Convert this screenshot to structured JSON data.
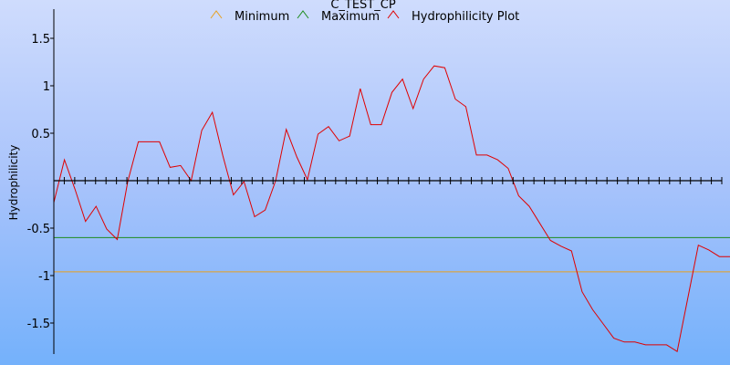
{
  "chart_data": {
    "type": "line",
    "title": "C_TEST_CP",
    "xlabel": "",
    "ylabel": "Hydrophilicity",
    "ylim": [
      -1.8,
      1.8
    ],
    "y_ticks": [
      1.5,
      1,
      0.5,
      -0.5,
      -1,
      -1.5
    ],
    "y_tick_labels": [
      "1.5",
      "1",
      "0.5",
      "-0.5",
      "-1",
      "-1.5"
    ],
    "legend_position": "top-center",
    "series": [
      {
        "name": "Minimum",
        "color": "#e8a020",
        "values": [
          -0.96,
          -0.96
        ]
      },
      {
        "name": "Maximum",
        "color": "#1e8c1e",
        "values": [
          -0.6,
          -0.6
        ]
      },
      {
        "name": "Hydrophilicity Plot",
        "color": "#e00000",
        "values": [
          -0.23,
          0.22,
          -0.09,
          -0.43,
          -0.27,
          -0.51,
          -0.62,
          -0.01,
          0.41,
          0.41,
          0.41,
          0.14,
          0.16,
          0.0,
          0.53,
          0.72,
          0.26,
          -0.15,
          -0.01,
          -0.38,
          -0.31,
          0.0,
          0.54,
          0.25,
          0.01,
          0.49,
          0.57,
          0.42,
          0.47,
          0.97,
          0.59,
          0.59,
          0.93,
          1.07,
          0.76,
          1.07,
          1.21,
          1.19,
          0.86,
          0.78,
          0.27,
          0.27,
          0.22,
          0.13,
          -0.16,
          -0.27,
          -0.45,
          -0.63,
          -0.69,
          -0.74,
          -1.17,
          -1.36,
          -1.51,
          -1.66,
          -1.7,
          -1.7,
          -1.73,
          -1.73,
          -1.73,
          -1.8,
          -1.24,
          -0.68,
          -0.73,
          -0.8,
          -0.8
        ]
      }
    ]
  }
}
